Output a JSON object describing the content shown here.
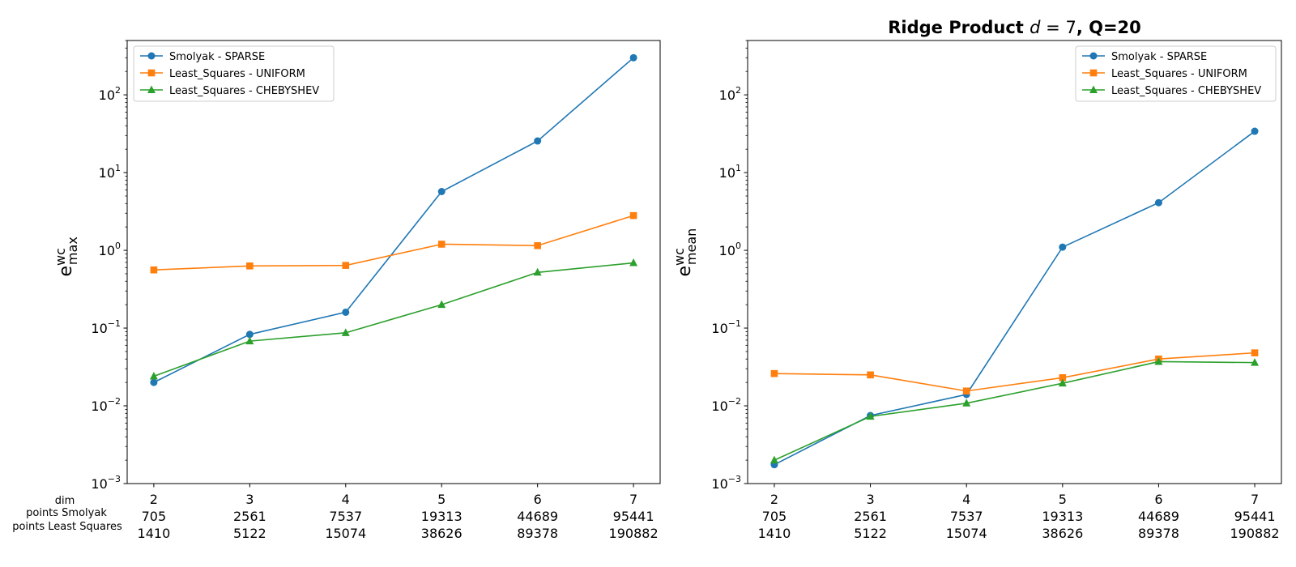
{
  "figure": {
    "row_labels": [
      "dim",
      "points Smolyak",
      "points Least Squares"
    ]
  },
  "chart_data": [
    {
      "type": "line",
      "title": "",
      "ylabel": {
        "base": "e",
        "sup": "wc",
        "sub": "max"
      },
      "yscale": "log",
      "ylim": [
        0.001,
        500
      ],
      "y_ticks": [
        0.001,
        0.01,
        0.1,
        1,
        10,
        100
      ],
      "x": [
        2,
        3,
        4,
        5,
        6,
        7
      ],
      "x_tick_rows": [
        [
          "2",
          "3",
          "4",
          "5",
          "6",
          "7"
        ],
        [
          "705",
          "2561",
          "7537",
          "19313",
          "44689",
          "95441"
        ],
        [
          "1410",
          "5122",
          "15074",
          "38626",
          "89378",
          "190882"
        ]
      ],
      "grid": false,
      "legend_position": "upper left",
      "series": [
        {
          "name": "Smolyak - SPARSE",
          "color": "#1f77b4",
          "marker": "circle",
          "values": [
            0.02,
            0.083,
            0.16,
            5.7,
            25.5,
            300
          ]
        },
        {
          "name": "Least_Squares - UNIFORM",
          "color": "#ff7f0e",
          "marker": "square",
          "values": [
            0.56,
            0.63,
            0.64,
            1.2,
            1.15,
            2.8
          ]
        },
        {
          "name": "Least_Squares - CHEBYSHEV",
          "color": "#2ca02c",
          "marker": "triangle",
          "values": [
            0.024,
            0.068,
            0.087,
            0.2,
            0.52,
            0.69
          ]
        }
      ]
    },
    {
      "type": "line",
      "title": {
        "pre": "Ridge Product ",
        "math_var": "d",
        "math_rest": " = 7",
        "post": ", Q=20"
      },
      "ylabel": {
        "base": "e",
        "sup": "wc",
        "sub": "mean"
      },
      "yscale": "log",
      "ylim": [
        0.001,
        500
      ],
      "y_ticks": [
        0.001,
        0.01,
        0.1,
        1,
        10,
        100
      ],
      "x": [
        2,
        3,
        4,
        5,
        6,
        7
      ],
      "x_tick_rows": [
        [
          "2",
          "3",
          "4",
          "5",
          "6",
          "7"
        ],
        [
          "705",
          "2561",
          "7537",
          "19313",
          "44689",
          "95441"
        ],
        [
          "1410",
          "5122",
          "15074",
          "38626",
          "89378",
          "190882"
        ]
      ],
      "grid": false,
      "legend_position": "upper right",
      "series": [
        {
          "name": "Smolyak - SPARSE",
          "color": "#1f77b4",
          "marker": "circle",
          "values": [
            0.00175,
            0.0075,
            0.014,
            1.1,
            4.1,
            34
          ]
        },
        {
          "name": "Least_Squares - UNIFORM",
          "color": "#ff7f0e",
          "marker": "square",
          "values": [
            0.026,
            0.025,
            0.0155,
            0.023,
            0.04,
            0.048
          ]
        },
        {
          "name": "Least_Squares - CHEBYSHEV",
          "color": "#2ca02c",
          "marker": "triangle",
          "values": [
            0.002,
            0.0073,
            0.0108,
            0.0195,
            0.037,
            0.036
          ]
        }
      ]
    }
  ]
}
